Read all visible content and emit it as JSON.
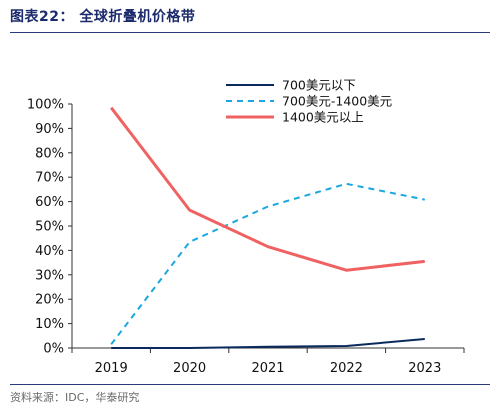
{
  "figure": {
    "title": "图表22：  全球折叠机价格带",
    "source": "资料来源：IDC，华泰研究"
  },
  "chart_data": {
    "type": "line",
    "x": [
      "2019",
      "2020",
      "2021",
      "2022",
      "2023"
    ],
    "ylim": [
      0,
      100
    ],
    "yticks": [
      "0%",
      "10%",
      "20%",
      "30%",
      "40%",
      "50%",
      "60%",
      "70%",
      "80%",
      "90%",
      "100%"
    ],
    "legend_position": "top-right",
    "grid": false,
    "series": [
      {
        "name": "700美元以下",
        "values": [
          0.0,
          0.0,
          0.5,
          0.8,
          3.7
        ],
        "color": "#0b2a5c",
        "dash": "solid"
      },
      {
        "name": "700美元-1400美元",
        "values": [
          1.5,
          43.5,
          58.0,
          67.3,
          60.8
        ],
        "color": "#1aa7e0",
        "dash": "dashed"
      },
      {
        "name": "1400美元以上",
        "values": [
          98.5,
          56.5,
          41.5,
          31.9,
          35.5
        ],
        "color": "#f06262",
        "dash": "solid"
      }
    ]
  }
}
